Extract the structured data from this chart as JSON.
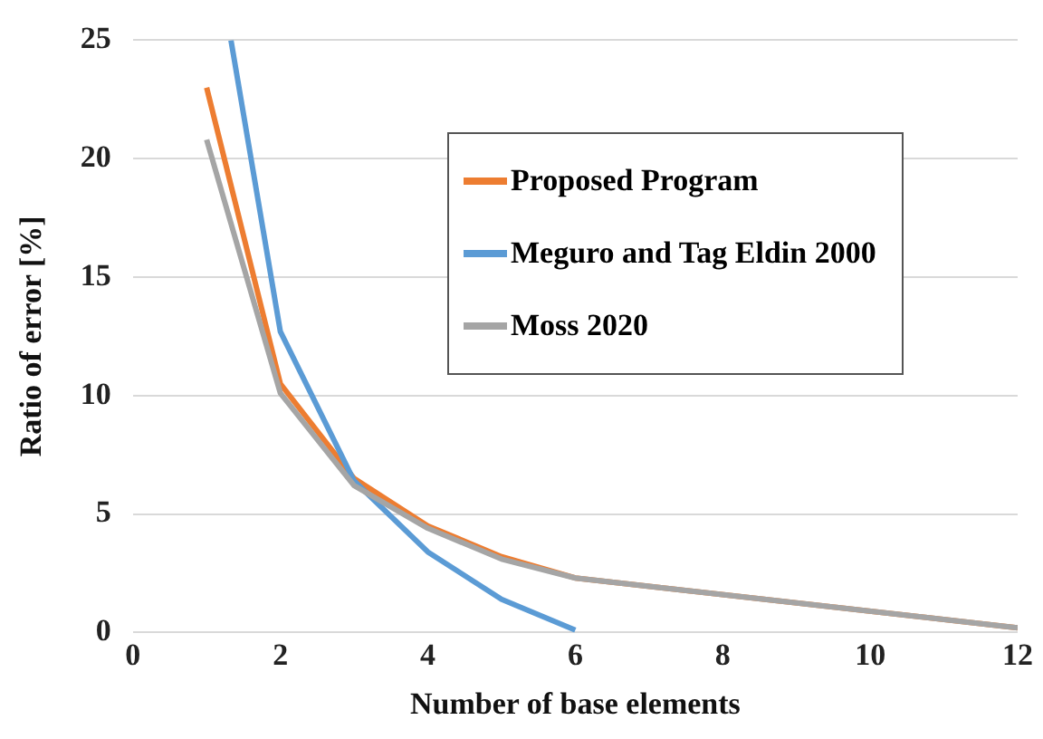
{
  "chart_data": {
    "type": "line",
    "xlabel": "Number of base elements",
    "ylabel": "Ratio of error [%]",
    "xlim": [
      0,
      12
    ],
    "xticks": [
      0,
      2,
      4,
      6,
      8,
      10,
      12
    ],
    "ylim": [
      0,
      25
    ],
    "yticks": [
      0,
      5,
      10,
      15,
      20,
      25
    ],
    "grid": "y",
    "legend": "top right",
    "marker": "none",
    "line_style": "solid",
    "series": [
      {
        "name": "Proposed Program",
        "color": "#ed7d31",
        "x": [
          1,
          2,
          3,
          4,
          5,
          6,
          12
        ],
        "values": [
          23,
          10.5,
          6.5,
          4.5,
          3.2,
          2.3,
          0.2
        ]
      },
      {
        "name": "Meguro and Tag Eldin 2000",
        "color": "#5b9bd5",
        "x": [
          1.33,
          2,
          3,
          4,
          5,
          6
        ],
        "values": [
          25,
          12.7,
          6.4,
          3.4,
          1.4,
          0.1
        ]
      },
      {
        "name": "Moss 2020",
        "color": "#a5a5a5",
        "x": [
          1,
          2,
          3,
          4,
          5,
          6,
          12
        ],
        "values": [
          20.8,
          10.1,
          6.2,
          4.4,
          3.1,
          2.3,
          0.2
        ]
      }
    ]
  }
}
